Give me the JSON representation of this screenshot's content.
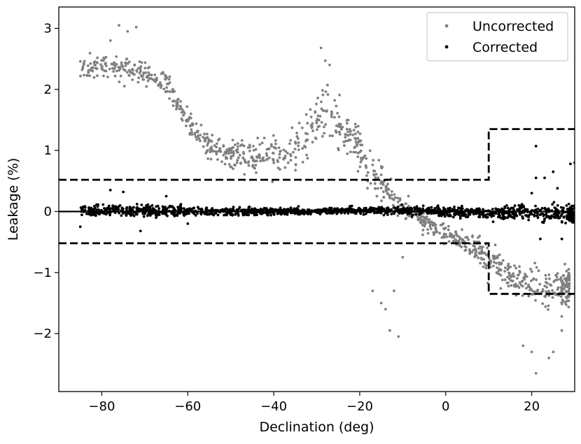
{
  "chart_data": {
    "type": "scatter",
    "xlabel": "Declination (deg)",
    "ylabel": "Leakage (%)",
    "xlim": [
      -90,
      30
    ],
    "ylim": [
      -2.95,
      3.35
    ],
    "x_ticks": [
      -80,
      -60,
      -40,
      -20,
      0,
      20
    ],
    "y_ticks": [
      -2,
      -1,
      0,
      1,
      2,
      3
    ],
    "x_tick_labels": [
      "−80",
      "−60",
      "−40",
      "−20",
      "0",
      "20"
    ],
    "y_tick_labels": [
      "−2",
      "−1",
      "0",
      "1",
      "2",
      "3"
    ],
    "grid": false,
    "legend": {
      "position": "top-right",
      "entries": [
        {
          "label": "Uncorrected",
          "color": "#808080"
        },
        {
          "label": "Corrected",
          "color": "#000000"
        }
      ]
    },
    "series": [
      {
        "name": "Uncorrected",
        "color": "#808080",
        "trend": [
          [
            -85,
            2.35
          ],
          [
            -80,
            2.4
          ],
          [
            -75,
            2.35
          ],
          [
            -70,
            2.25
          ],
          [
            -65,
            2.1
          ],
          [
            -62,
            1.7
          ],
          [
            -58,
            1.3
          ],
          [
            -55,
            1.05
          ],
          [
            -50,
            0.95
          ],
          [
            -45,
            0.9
          ],
          [
            -40,
            0.95
          ],
          [
            -35,
            1.0
          ],
          [
            -32,
            1.3
          ],
          [
            -28,
            1.6
          ],
          [
            -26,
            1.4
          ],
          [
            -22,
            1.2
          ],
          [
            -20,
            1.0
          ],
          [
            -16,
            0.5
          ],
          [
            -12,
            0.2
          ],
          [
            -8,
            0.0
          ],
          [
            -4,
            -0.2
          ],
          [
            0,
            -0.35
          ],
          [
            5,
            -0.5
          ],
          [
            10,
            -0.75
          ],
          [
            15,
            -1.05
          ],
          [
            20,
            -1.2
          ],
          [
            25,
            -1.25
          ],
          [
            30,
            -1.25
          ]
        ],
        "spread": [
          [
            -85,
            0.25
          ],
          [
            -70,
            0.25
          ],
          [
            -60,
            0.25
          ],
          [
            -50,
            0.3
          ],
          [
            -40,
            0.35
          ],
          [
            -30,
            0.55
          ],
          [
            -25,
            0.55
          ],
          [
            -20,
            0.45
          ],
          [
            -15,
            0.35
          ],
          [
            -10,
            0.25
          ],
          [
            0,
            0.2
          ],
          [
            10,
            0.3
          ],
          [
            20,
            0.4
          ],
          [
            30,
            0.4
          ]
        ],
        "outliers": [
          [
            -76,
            3.05
          ],
          [
            -72,
            3.02
          ],
          [
            -74,
            2.95
          ],
          [
            -78,
            2.8
          ],
          [
            -29,
            2.68
          ],
          [
            -28,
            2.47
          ],
          [
            -27,
            2.4
          ],
          [
            -17,
            -1.3
          ],
          [
            -15,
            -1.5
          ],
          [
            -14,
            -1.6
          ],
          [
            -13,
            -1.95
          ],
          [
            -12,
            -1.3
          ],
          [
            -11,
            -2.05
          ],
          [
            -10,
            -0.75
          ],
          [
            18,
            -2.2
          ],
          [
            20,
            -2.3
          ],
          [
            21,
            -2.65
          ],
          [
            24,
            -2.4
          ],
          [
            25,
            -2.3
          ],
          [
            27,
            -1.95
          ],
          [
            28,
            -1.4
          ],
          [
            29,
            -1.35
          ]
        ]
      },
      {
        "name": "Corrected",
        "color": "#000000",
        "trend": [
          [
            -85,
            0.03
          ],
          [
            -60,
            0.0
          ],
          [
            -40,
            0.0
          ],
          [
            -20,
            0.02
          ],
          [
            0,
            0.0
          ],
          [
            10,
            -0.03
          ],
          [
            20,
            -0.02
          ],
          [
            30,
            -0.03
          ]
        ],
        "spread": [
          [
            -85,
            0.13
          ],
          [
            -60,
            0.1
          ],
          [
            -40,
            0.07
          ],
          [
            -20,
            0.07
          ],
          [
            0,
            0.1
          ],
          [
            10,
            0.12
          ],
          [
            20,
            0.16
          ],
          [
            30,
            0.2
          ]
        ],
        "outliers": [
          [
            -85,
            -0.25
          ],
          [
            -78,
            0.35
          ],
          [
            -75,
            0.32
          ],
          [
            -71,
            -0.32
          ],
          [
            -65,
            0.25
          ],
          [
            -60,
            -0.2
          ],
          [
            20,
            0.3
          ],
          [
            21,
            1.07
          ],
          [
            21,
            0.55
          ],
          [
            22,
            -0.45
          ],
          [
            23,
            0.55
          ],
          [
            25,
            0.65
          ],
          [
            26,
            0.38
          ],
          [
            27,
            -0.45
          ],
          [
            29,
            0.78
          ],
          [
            30,
            0.8
          ]
        ]
      }
    ],
    "reference_lines": [
      {
        "type": "solid",
        "points": [
          [
            -90,
            0
          ],
          [
            30,
            0
          ]
        ]
      },
      {
        "type": "dashed",
        "points": [
          [
            -90,
            0.52
          ],
          [
            10,
            0.52
          ],
          [
            10,
            1.35
          ],
          [
            30,
            1.35
          ]
        ]
      },
      {
        "type": "dashed",
        "points": [
          [
            -90,
            -0.52
          ],
          [
            10,
            -0.52
          ],
          [
            10,
            -1.35
          ],
          [
            30,
            -1.35
          ]
        ]
      }
    ]
  }
}
